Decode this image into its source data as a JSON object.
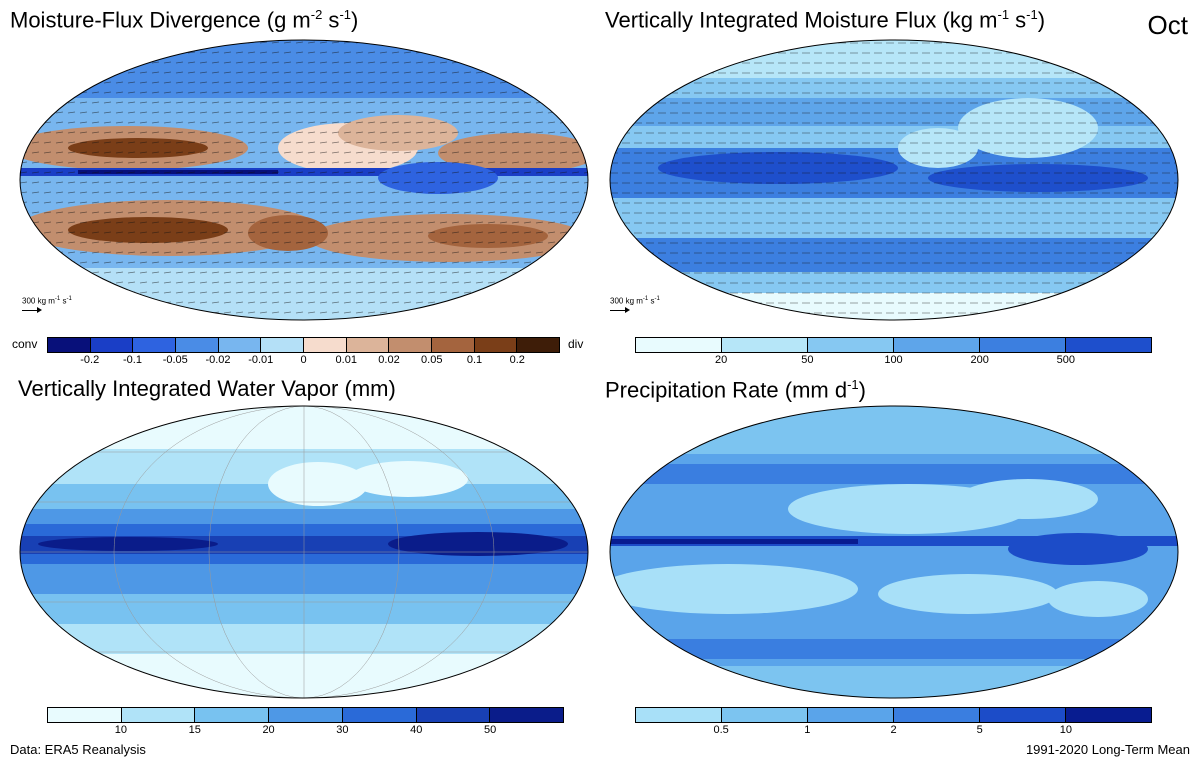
{
  "month": "Oct",
  "panels": {
    "divergence": {
      "title_main": "Moisture-Flux Divergence (g m",
      "title_e1": "-2",
      "title_mid": " s",
      "title_e2": "-1",
      "title_end": ")",
      "ref_main": "300 kg m",
      "ref_e1": "-1",
      "ref_mid": " s",
      "ref_e2": "-1",
      "colorbar": {
        "left_label": "conv",
        "right_label": "div",
        "ticks": [
          "-0.2",
          "-0.1",
          "-0.05",
          "-0.02",
          "-0.01",
          "0",
          "0.01",
          "0.02",
          "0.05",
          "0.1",
          "0.2"
        ],
        "colors": [
          "#08107a",
          "#1a3ec6",
          "#2e63e0",
          "#4a8ce6",
          "#78b6ef",
          "#b4e0f7",
          "#f6dccd",
          "#dcb49a",
          "#c28e6e",
          "#a4643e",
          "#7a3e18",
          "#3e1d08"
        ]
      }
    },
    "flux": {
      "title_main": "Vertically Integrated Moisture Flux (kg m",
      "title_e1": "-1",
      "title_mid": " s",
      "title_e2": "-1",
      "title_end": ")",
      "ref_main": "300 kg m",
      "ref_e1": "-1",
      "ref_mid": " s",
      "ref_e2": "-1",
      "colorbar": {
        "ticks": [
          "20",
          "50",
          "100",
          "200",
          "500"
        ],
        "colors": [
          "#e8fbfe",
          "#b6e6f8",
          "#86c8f2",
          "#5ea5ea",
          "#3c7fe0",
          "#1e4fcc"
        ]
      }
    },
    "water_vapor": {
      "title_main": "Vertically Integrated Water Vapor (mm)",
      "colorbar": {
        "ticks": [
          "10",
          "15",
          "20",
          "30",
          "40",
          "50"
        ],
        "colors": [
          "#e8fbfe",
          "#b0e3f8",
          "#78c2f0",
          "#4e98e6",
          "#2a6ad8",
          "#1840b4",
          "#0a1c8a"
        ]
      }
    },
    "precip": {
      "title_main": "Precipitation Rate (mm d",
      "title_e1": "-1",
      "title_end": ")",
      "colorbar": {
        "ticks": [
          "0.5",
          "1",
          "2",
          "5",
          "10"
        ],
        "colors": [
          "#a8e0f8",
          "#7cc4f0",
          "#5aa4ea",
          "#3a7ee0",
          "#1c4cc8",
          "#081c90"
        ]
      }
    }
  },
  "footer": {
    "left": "Data: ERA5 Reanalysis",
    "right": "1991-2020 Long-Term Mean"
  }
}
